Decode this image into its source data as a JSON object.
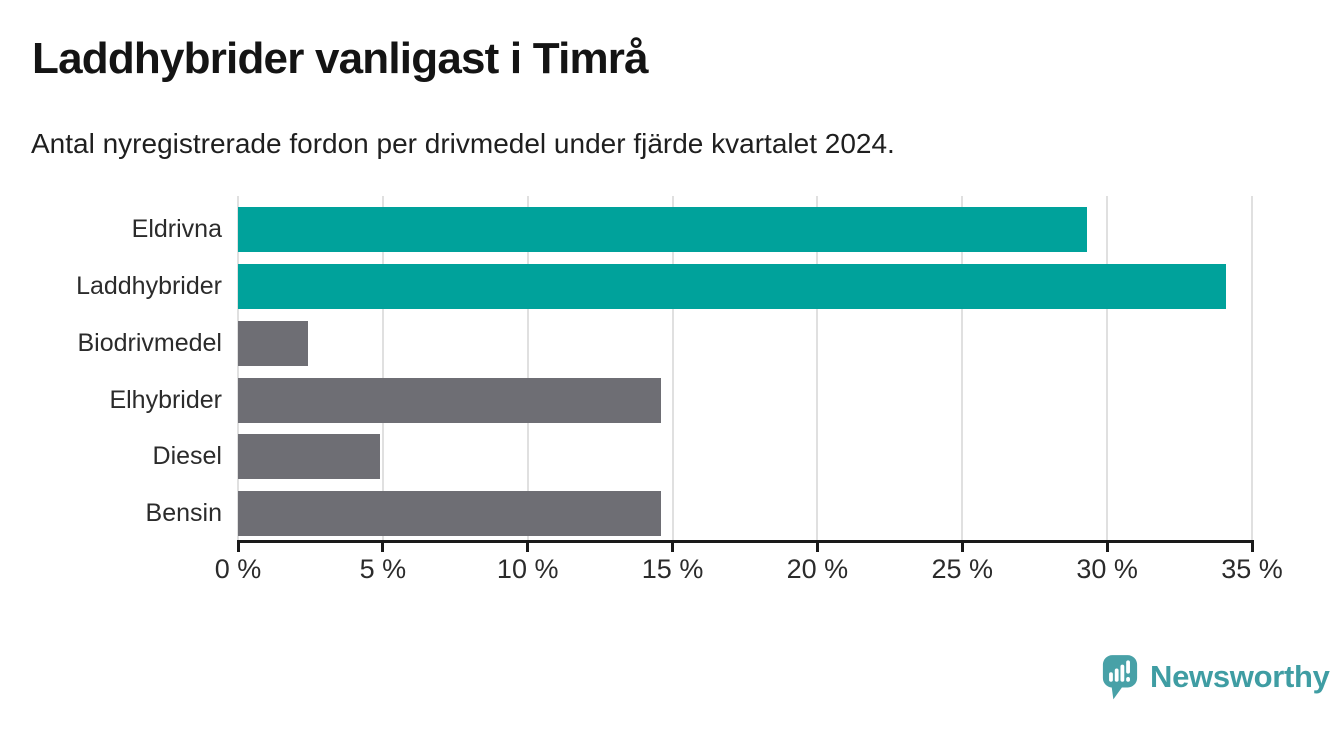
{
  "header": {
    "title": "Laddhybrider vanligast i Timrå",
    "subtitle": "Antal nyregistrerade fordon per drivmedel under fjärde kvartalet 2024."
  },
  "chart_data": {
    "type": "bar",
    "orientation": "horizontal",
    "title": "Laddhybrider vanligast i Timrå",
    "subtitle": "Antal nyregistrerade fordon per drivmedel under fjärde kvartalet 2024.",
    "categories": [
      "Eldrivna",
      "Laddhybrider",
      "Biodrivmedel",
      "Elhybrider",
      "Diesel",
      "Bensin"
    ],
    "values": [
      29.3,
      34.1,
      2.4,
      14.6,
      4.9,
      14.6
    ],
    "unit": "%",
    "xlabel": "",
    "ylabel": "",
    "xlim": [
      0,
      35
    ],
    "x_ticks": [
      0,
      5,
      10,
      15,
      20,
      25,
      30,
      35
    ],
    "x_tick_labels": [
      "0 %",
      "5 %",
      "10 %",
      "15 %",
      "20 %",
      "25 %",
      "30 %",
      "35 %"
    ],
    "grid": true,
    "legend": false,
    "bar_colors": [
      "#00A29B",
      "#00A29B",
      "#6E6E74",
      "#6E6E74",
      "#6E6E74",
      "#6E6E74"
    ],
    "highlight_color": "#00A29B",
    "default_color": "#6E6E74",
    "gridline_color": "#e0e0e0",
    "axis_color": "#1a1a1a"
  },
  "footer": {
    "logo_text": "Newsworthy",
    "logo_color": "#48A1A7"
  }
}
